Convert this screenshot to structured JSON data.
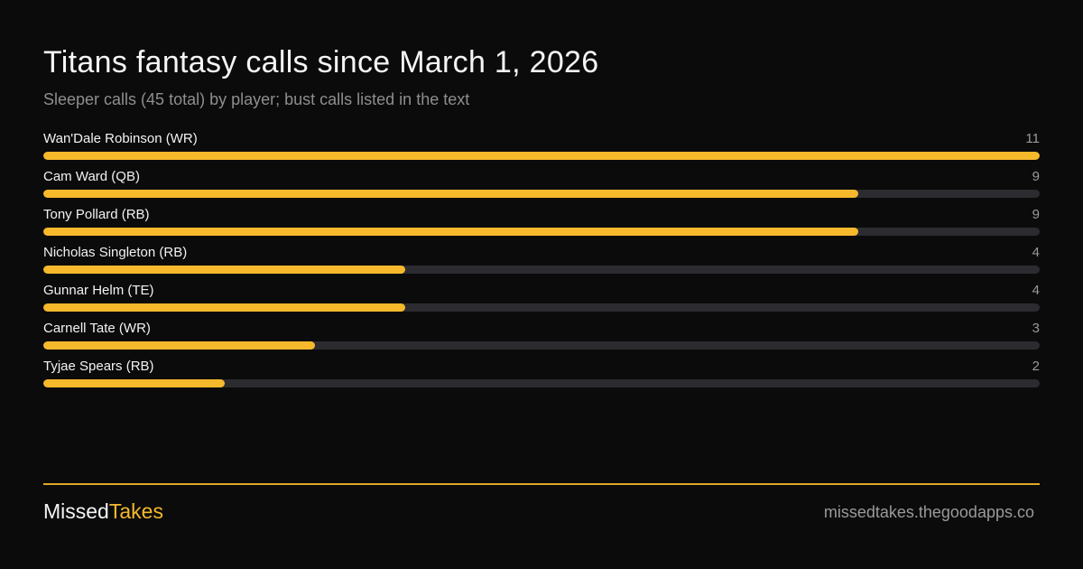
{
  "header": {
    "title": "Titans fantasy calls since March 1, 2026",
    "subtitle": "Sleeper calls (45 total) by player; bust calls listed in the text"
  },
  "footer": {
    "brand_part1": "Missed",
    "brand_part2": "Takes",
    "url": "missedtakes.thegoodapps.co"
  },
  "colors": {
    "background": "#0b0b0b",
    "accent": "#f7b92c",
    "track": "#2c2b30"
  },
  "chart_data": {
    "type": "bar",
    "orientation": "horizontal",
    "categories": [
      "Wan'Dale Robinson (WR)",
      "Cam Ward (QB)",
      "Tony Pollard (RB)",
      "Nicholas Singleton (RB)",
      "Gunnar Helm (TE)",
      "Carnell Tate (WR)",
      "Tyjae Spears (RB)"
    ],
    "values": [
      11,
      9,
      9,
      4,
      4,
      3,
      2
    ],
    "xlim": [
      0,
      11
    ],
    "grid": false,
    "legend": "none"
  }
}
